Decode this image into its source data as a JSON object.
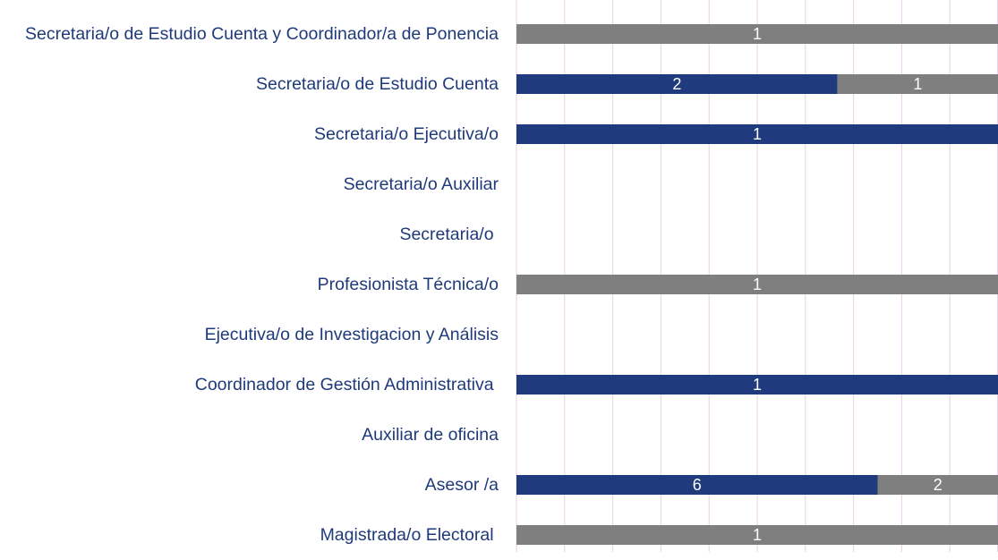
{
  "chart_data": {
    "type": "bar",
    "orientation": "horizontal",
    "stacked": "percent",
    "categories": [
      "Secretaria/o de Estudio Cuenta y Coordinador/a de Ponencia",
      "Secretaria/o de Estudio Cuenta",
      "Secretaria/o Ejecutiva/o",
      "Secretaria/o Auxiliar",
      "Secretaria/o ",
      "Profesionista Técnica/o",
      "Ejecutiva/o de Investigacion y Análisis",
      "Coordinador de Gestión Administrativa ",
      "Auxiliar de oficina",
      "Asesor /a",
      "Magistrada/o Electoral "
    ],
    "series": [
      {
        "color": "#1f3b7d",
        "values": [
          null,
          2,
          1,
          null,
          null,
          null,
          null,
          1,
          null,
          6,
          null
        ]
      },
      {
        "color": "#7f7f7f",
        "values": [
          1,
          1,
          null,
          null,
          null,
          1,
          null,
          null,
          null,
          2,
          1
        ]
      }
    ],
    "xlim": [
      0,
      100
    ],
    "xticks": [
      0,
      10,
      20,
      30,
      40,
      50,
      60,
      70,
      80,
      90,
      100
    ],
    "grid": true,
    "gridColor": "#ead0ea"
  }
}
